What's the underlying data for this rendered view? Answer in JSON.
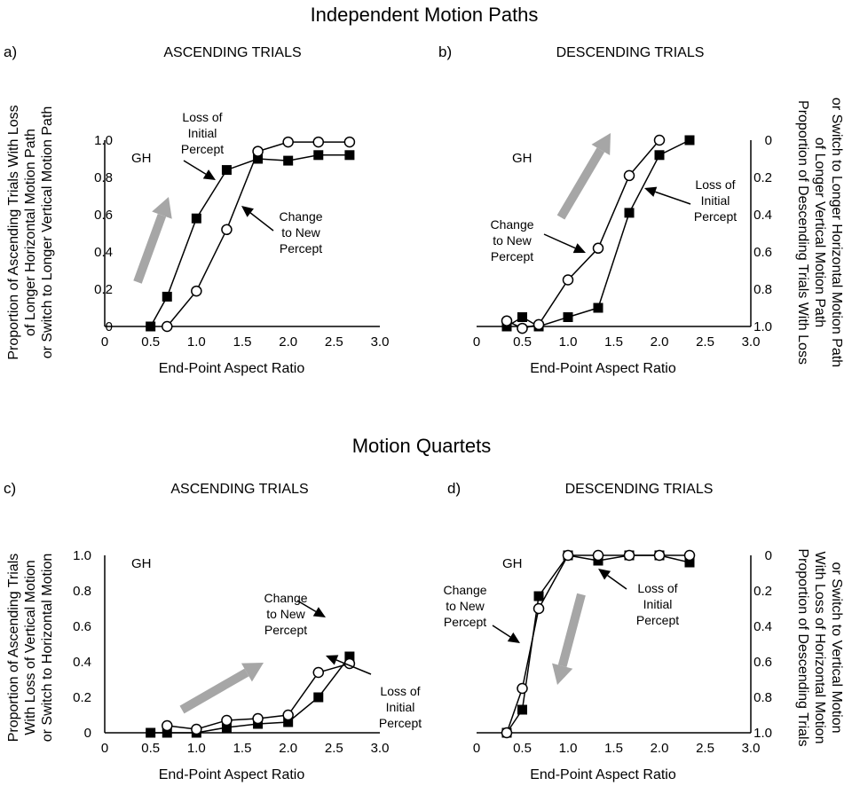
{
  "section_titles": [
    "Independent Motion Paths",
    "Motion Quartets"
  ],
  "panels": [
    {
      "label": "a)",
      "title": "ASCENDING TRIALS",
      "subject": "GH",
      "xlabel": "End-Point Aspect Ratio",
      "ylabel_lines": [
        "Proportion of Ascending Trials With Loss",
        "of Longer Horizontal Motion Path",
        "or Switch to Longer Vertical Motion Path"
      ],
      "annotations": [
        {
          "lines": [
            "Loss of",
            "Initial",
            "Percept"
          ]
        },
        {
          "lines": [
            "Change",
            "to New",
            "Percept"
          ]
        }
      ]
    },
    {
      "label": "b)",
      "title": "DESCENDING TRIALS",
      "subject": "GH",
      "xlabel": "End-Point Aspect Ratio",
      "ylabel_lines": [
        "Proportion of Descending Trials With Loss",
        "of Longer Vertical Motion Path",
        "or Switch to Longer Horizontal Motion Path"
      ],
      "annotations": [
        {
          "lines": [
            "Change",
            "to New",
            "Percept"
          ]
        },
        {
          "lines": [
            "Loss of",
            "Initial",
            "Percept"
          ]
        }
      ]
    },
    {
      "label": "c)",
      "title": "ASCENDING TRIALS",
      "subject": "GH",
      "xlabel": "End-Point Aspect Ratio",
      "ylabel_lines": [
        "Proportion of Ascending Trials",
        "With Loss of Vertical Motion",
        "or Switch to Horizontal Motion"
      ],
      "annotations": [
        {
          "lines": [
            "Change",
            "to New",
            "Percept"
          ]
        },
        {
          "lines": [
            "Loss of",
            "Initial",
            "Percept"
          ]
        }
      ]
    },
    {
      "label": "d)",
      "title": "DESCENDING TRIALS",
      "subject": "GH",
      "xlabel": "End-Point Aspect Ratio",
      "ylabel_lines": [
        "Proportion of Descending Trials",
        "With Loss of Horizontal Motion",
        "or Switch to Vertical Motion"
      ],
      "annotations": [
        {
          "lines": [
            "Change",
            "to New",
            "Percept"
          ]
        },
        {
          "lines": [
            "Loss of",
            "Initial",
            "Percept"
          ]
        }
      ]
    }
  ],
  "chart_data": [
    {
      "type": "line",
      "panel": "a",
      "xlim": [
        0,
        3.0
      ],
      "ylim": [
        0,
        1.0
      ],
      "x_ticks": [
        "0",
        "0.5",
        "1.0",
        "1.5",
        "2.0",
        "2.5",
        "3.0"
      ],
      "y_ticks": [
        "0",
        "0.2",
        "0.4",
        "0.6",
        "0.8",
        "1.0"
      ],
      "y_axis_side": "left",
      "arrow_direction": "up",
      "series": [
        {
          "marker": "filled-square",
          "x": [
            0.5,
            0.68,
            1.0,
            1.33,
            1.67,
            2.0,
            2.33,
            2.67
          ],
          "y": [
            0.0,
            0.16,
            0.58,
            0.84,
            0.9,
            0.89,
            0.92,
            0.92
          ]
        },
        {
          "marker": "open-circle",
          "x": [
            0.68,
            1.0,
            1.33,
            1.67,
            2.0,
            2.33,
            2.67
          ],
          "y": [
            0.0,
            0.19,
            0.52,
            0.94,
            0.99,
            0.99,
            0.99
          ]
        }
      ]
    },
    {
      "type": "line",
      "panel": "b",
      "xlim": [
        0,
        3.0
      ],
      "ylim": [
        0,
        1.0
      ],
      "x_ticks": [
        "0",
        "0.5",
        "1.0",
        "1.5",
        "2.0",
        "2.5",
        "3.0"
      ],
      "y_ticks": [
        "1.0",
        "0.8",
        "0.6",
        "0.4",
        "0.2",
        "0"
      ],
      "y_axis_side": "right",
      "arrow_direction": "up",
      "series": [
        {
          "marker": "filled-square",
          "x": [
            0.33,
            0.5,
            0.68,
            1.0,
            1.33,
            1.67,
            2.0,
            2.33
          ],
          "y": [
            0.0,
            0.05,
            0.0,
            0.05,
            0.1,
            0.61,
            0.92,
            1.0
          ]
        },
        {
          "marker": "open-circle",
          "x": [
            0.33,
            0.5,
            0.68,
            1.0,
            1.33,
            1.67,
            2.0
          ],
          "y": [
            0.03,
            -0.01,
            0.01,
            0.25,
            0.42,
            0.81,
            1.0
          ]
        }
      ]
    },
    {
      "type": "line",
      "panel": "c",
      "xlim": [
        0,
        3.0
      ],
      "ylim": [
        0,
        1.0
      ],
      "x_ticks": [
        "0",
        "0.5",
        "1.0",
        "1.5",
        "2.0",
        "2.5",
        "3.0"
      ],
      "y_ticks": [
        "0",
        "0.2",
        "0.4",
        "0.6",
        "0.8",
        "1.0"
      ],
      "y_axis_side": "left",
      "arrow_direction": "up",
      "series": [
        {
          "marker": "filled-square",
          "x": [
            0.5,
            0.68,
            1.0,
            1.33,
            1.67,
            2.0,
            2.33,
            2.67
          ],
          "y": [
            0.0,
            0.0,
            0.0,
            0.03,
            0.05,
            0.06,
            0.2,
            0.43
          ]
        },
        {
          "marker": "open-circle",
          "x": [
            0.68,
            1.0,
            1.33,
            1.67,
            2.0,
            2.33,
            2.67
          ],
          "y": [
            0.04,
            0.02,
            0.07,
            0.08,
            0.1,
            0.34,
            0.39
          ]
        }
      ]
    },
    {
      "type": "line",
      "panel": "d",
      "xlim": [
        0,
        3.0
      ],
      "ylim": [
        0,
        1.0
      ],
      "x_ticks": [
        "0",
        "0.5",
        "1.0",
        "1.5",
        "2.0",
        "2.5",
        "3.0"
      ],
      "y_ticks": [
        "1.0",
        "0.8",
        "0.6",
        "0.4",
        "0.2",
        "0"
      ],
      "y_axis_side": "right",
      "arrow_direction": "down",
      "series": [
        {
          "marker": "filled-square",
          "x": [
            0.33,
            0.5,
            0.68,
            1.0,
            1.33,
            1.67,
            2.0,
            2.33
          ],
          "y": [
            0.0,
            0.13,
            0.77,
            1.0,
            0.97,
            1.0,
            1.0,
            0.96
          ]
        },
        {
          "marker": "open-circle",
          "x": [
            0.33,
            0.5,
            0.68,
            1.0,
            1.33,
            1.67,
            2.0,
            2.33
          ],
          "y": [
            0.0,
            0.25,
            0.7,
            1.0,
            1.0,
            1.0,
            1.0,
            1.0
          ]
        }
      ]
    }
  ]
}
